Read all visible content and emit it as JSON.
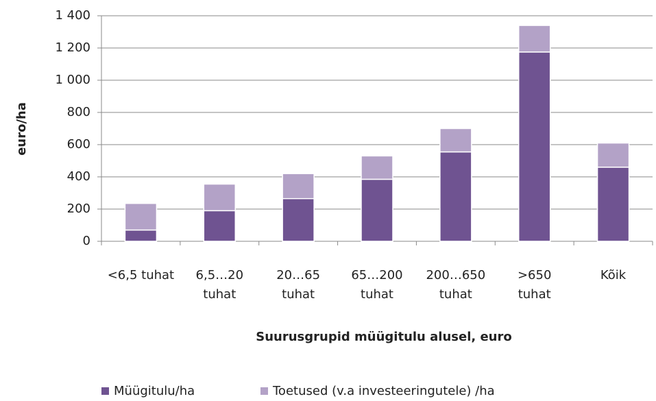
{
  "chart_data": {
    "type": "stacked_bar",
    "y_label": "euro/ha",
    "x_label": "Suurusgrupid müügitulu alusel, euro",
    "categories": [
      "<6,5 tuhat",
      "6,5…20 tuhat",
      "20…65 tuhat",
      "65…200 tuhat",
      "200…650 tuhat",
      ">650 tuhat",
      "Kõik"
    ],
    "series": [
      {
        "name": "Müügitulu/ha",
        "color": "#6f5391",
        "values": [
          70,
          190,
          265,
          385,
          555,
          1175,
          460
        ]
      },
      {
        "name": "Toetused (v.a investeeringutele) /ha",
        "color": "#b3a2c7",
        "values": [
          165,
          165,
          155,
          145,
          145,
          165,
          150
        ]
      }
    ],
    "ylim": [
      0,
      1400
    ],
    "yticks": [
      0,
      200,
      400,
      600,
      800,
      {
        "value": 1000,
        "label": "1 000"
      },
      {
        "value": 1200,
        "label": "1 200"
      },
      {
        "value": 1400,
        "label": "1 400"
      }
    ],
    "grid": true
  }
}
